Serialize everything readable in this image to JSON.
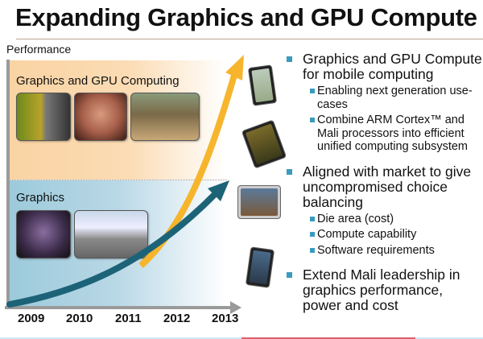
{
  "title": "Expanding Graphics and GPU Compute",
  "diagram": {
    "y_axis_label": "Performance",
    "upper_section_label": "Graphics and GPU Computing",
    "lower_section_label": "Graphics",
    "years": [
      "2009",
      "2010",
      "2011",
      "2012",
      "2013"
    ],
    "colors": {
      "orange_arrow": "#f6b52c",
      "teal_arrow": "#1d6378",
      "orange_bg": "#f9d3a3",
      "blue_bg": "#9ccadb"
    }
  },
  "bullets": [
    {
      "text": "Graphics and GPU Compute for mobile computing",
      "sub": [
        "Enabling next generation use-cases",
        "Combine ARM Cortex™ and Mali processors into efficient unified computing subsystem"
      ]
    },
    {
      "text": "Aligned with market to give uncompromised choice balancing",
      "sub": [
        "Die area (cost)",
        "Compute capability",
        "Software requirements"
      ]
    },
    {
      "text": "Extend Mali leadership in graphics performance, power and cost",
      "sub": []
    }
  ]
}
